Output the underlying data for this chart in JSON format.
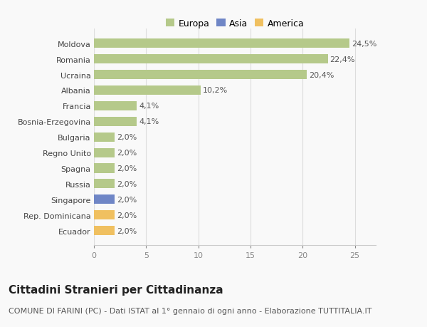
{
  "categories": [
    "Ecuador",
    "Rep. Dominicana",
    "Singapore",
    "Russia",
    "Spagna",
    "Regno Unito",
    "Bulgaria",
    "Bosnia-Erzegovina",
    "Francia",
    "Albania",
    "Ucraina",
    "Romania",
    "Moldova"
  ],
  "values": [
    2.0,
    2.0,
    2.0,
    2.0,
    2.0,
    2.0,
    2.0,
    4.1,
    4.1,
    10.2,
    20.4,
    22.4,
    24.5
  ],
  "colors": [
    "#f0c060",
    "#f0c060",
    "#6f86c6",
    "#b5c98a",
    "#b5c98a",
    "#b5c98a",
    "#b5c98a",
    "#b5c98a",
    "#b5c98a",
    "#b5c98a",
    "#b5c98a",
    "#b5c98a",
    "#b5c98a"
  ],
  "labels": [
    "2,0%",
    "2,0%",
    "2,0%",
    "2,0%",
    "2,0%",
    "2,0%",
    "2,0%",
    "4,1%",
    "4,1%",
    "10,2%",
    "20,4%",
    "22,4%",
    "24,5%"
  ],
  "xlim": [
    0,
    27
  ],
  "xticks": [
    0,
    5,
    10,
    15,
    20,
    25
  ],
  "legend_labels": [
    "Europa",
    "Asia",
    "America"
  ],
  "legend_colors": [
    "#b5c98a",
    "#6f86c6",
    "#f0c060"
  ],
  "title": "Cittadini Stranieri per Cittadinanza",
  "subtitle": "COMUNE DI FARINI (PC) - Dati ISTAT al 1° gennaio di ogni anno - Elaborazione TUTTITALIA.IT",
  "background_color": "#f9f9f9",
  "bar_height": 0.6,
  "title_fontsize": 11,
  "subtitle_fontsize": 8,
  "label_fontsize": 8,
  "tick_fontsize": 8
}
